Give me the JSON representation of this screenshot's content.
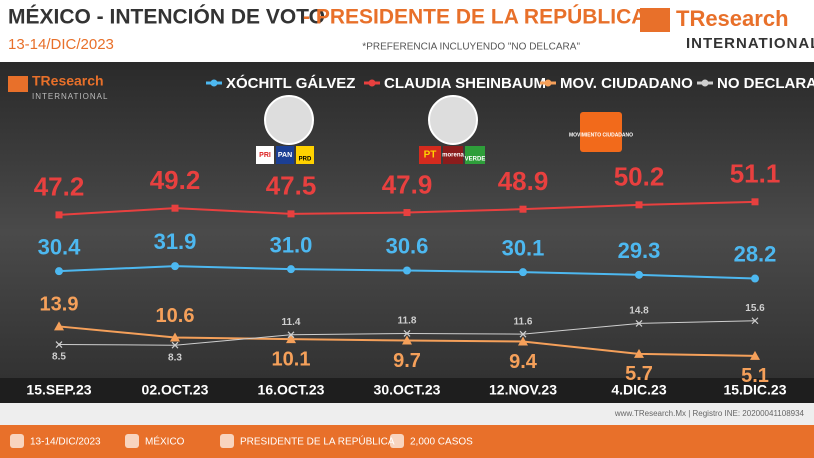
{
  "chart_data": {
    "type": "line",
    "title_parts": [
      "MÉXICO - INTENCIÓN DE VOTO",
      "- PRESIDENTE DE LA REPÚBLICA"
    ],
    "subtitle": "13-14/DIC/2023",
    "note": "*PREFERENCIA INCLUYENDO \"NO DELCARA\"",
    "categories": [
      "15.SEP.23",
      "02.OCT.23",
      "16.OCT.23",
      "30.OCT.23",
      "12.NOV.23",
      "4.DIC.23",
      "15.DIC.23"
    ],
    "series": [
      {
        "name": "XÓCHITL GÁLVEZ",
        "color": "#4db8f0",
        "values": [
          30.4,
          31.9,
          31.0,
          30.6,
          30.1,
          29.3,
          28.2
        ],
        "value_labels": [
          "30.4",
          "31.9",
          "31.0",
          "30.6",
          "30.1",
          "29.3",
          "28.2"
        ]
      },
      {
        "name": "CLAUDIA SHEINBAUM",
        "color": "#e8403f",
        "values": [
          47.2,
          49.2,
          47.5,
          47.9,
          48.9,
          50.2,
          51.1
        ],
        "value_labels": [
          "47.2",
          "49.2",
          "47.5",
          "47.9",
          "48.9",
          "50.2",
          "51.1"
        ]
      },
      {
        "name": "MOV. CIUDADANO",
        "color": "#f5a05a",
        "values": [
          13.9,
          10.6,
          10.1,
          9.7,
          9.4,
          5.7,
          5.1
        ],
        "value_labels": [
          "13.9",
          "10.6",
          "10.1",
          "9.7",
          "9.4",
          "5.7",
          "5.1"
        ]
      },
      {
        "name": "NO DECLARA",
        "color": "#cfcfcf",
        "values": [
          8.5,
          8.3,
          11.4,
          11.8,
          11.6,
          14.8,
          15.6
        ],
        "value_labels": [
          "8.5",
          "8.3",
          "11.4",
          "11.8",
          "11.6",
          "14.8",
          "15.6"
        ]
      }
    ],
    "grid": false
  },
  "logo": {
    "brand": "TResearch",
    "sub": "INTERNATIONAL"
  },
  "parties": {
    "pri": "PRI",
    "pan": "PAN",
    "prd": "PRD",
    "pt": "PT",
    "morena": "morena",
    "verde": "VERDE",
    "mc": "MOVIMIENTO CIUDADANO"
  },
  "footer": {
    "register": "www.TResearch.Mx | Registro INE: 20200041108934",
    "items": [
      "13-14/DIC/2023",
      "MÉXICO",
      "PRESIDENTE DE LA REPÚBLICA",
      "2,000 CASOS"
    ]
  }
}
